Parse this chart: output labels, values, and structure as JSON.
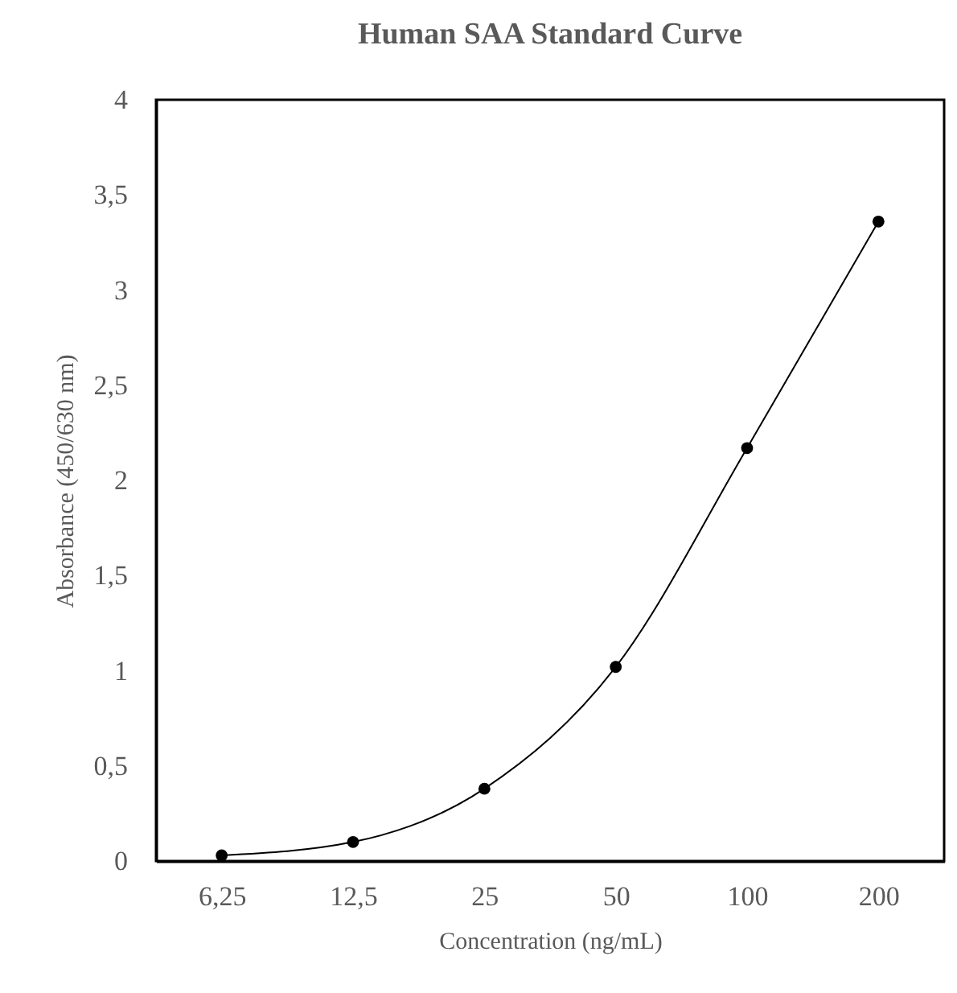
{
  "chart_data": {
    "type": "line",
    "title": "Human SAA Standard Curve",
    "xlabel": "Concentration (ng/mL)",
    "ylabel": "Absorbance (450/630 nm)",
    "categories": [
      "6,25",
      "12,5",
      "25",
      "50",
      "100",
      "200"
    ],
    "series": [
      {
        "color": "#000000",
        "values": [
          0.03,
          0.1,
          0.38,
          1.02,
          2.17,
          3.36
        ]
      }
    ],
    "ylim": [
      0,
      4
    ],
    "yticks": [
      0,
      {
        "value": 0.5,
        "label": "0,5"
      },
      1,
      {
        "value": 1.5,
        "label": "1,5"
      },
      2,
      {
        "value": 2.5,
        "label": "2,5"
      },
      3,
      {
        "value": 3.5,
        "label": "3,5"
      },
      4
    ],
    "marker": "circle",
    "line_style": "solid"
  }
}
